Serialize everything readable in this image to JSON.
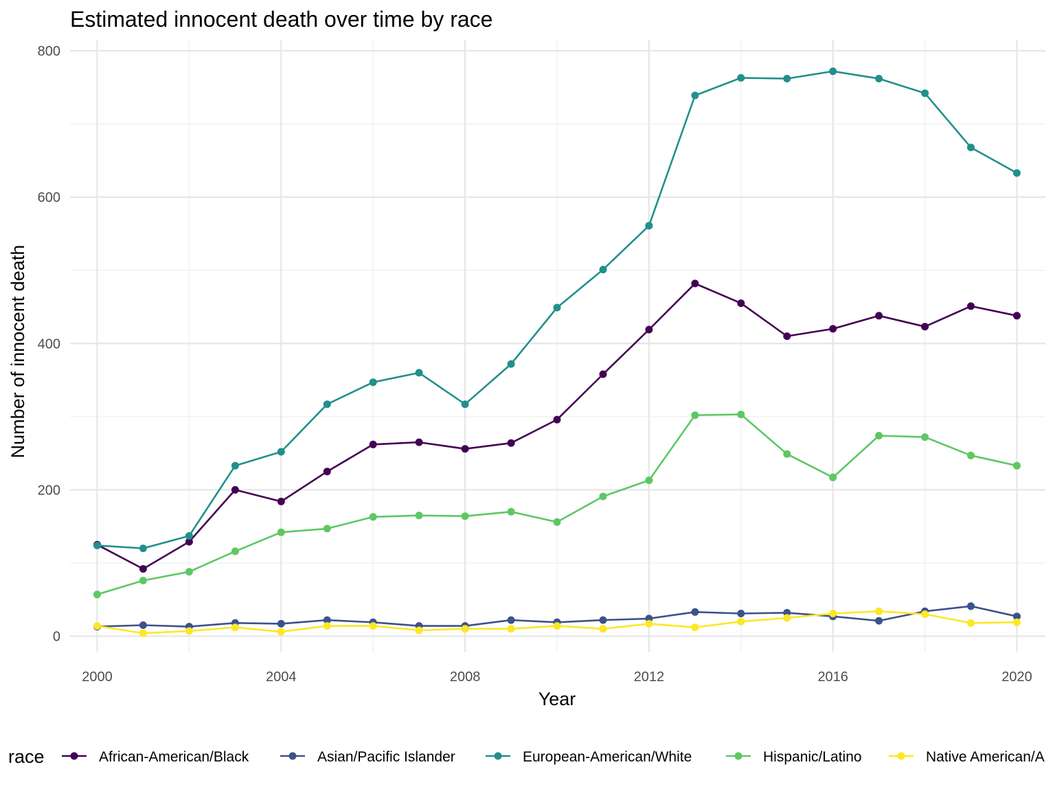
{
  "chart_data": {
    "type": "line",
    "title": "Estimated innocent death over time by race",
    "xlabel": "Year",
    "ylabel": "Number of innocent death",
    "xlim": [
      2000,
      2020
    ],
    "ylim": [
      0,
      800
    ],
    "x_ticks": [
      2000,
      2004,
      2008,
      2012,
      2016,
      2020
    ],
    "y_ticks": [
      0,
      200,
      400,
      600,
      800
    ],
    "grid": true,
    "legend": {
      "title": "race",
      "position": "bottom"
    },
    "x": [
      2000,
      2001,
      2002,
      2003,
      2004,
      2005,
      2006,
      2007,
      2008,
      2009,
      2010,
      2011,
      2012,
      2013,
      2014,
      2015,
      2016,
      2017,
      2018,
      2019,
      2020
    ],
    "series": [
      {
        "name": "African-American/Black",
        "color": "#440154",
        "values": [
          125,
          92,
          129,
          200,
          184,
          225,
          262,
          265,
          256,
          264,
          296,
          358,
          419,
          482,
          455,
          410,
          420,
          438,
          423,
          451,
          438
        ]
      },
      {
        "name": "Asian/Pacific Islander",
        "color": "#3B528B",
        "values": [
          13,
          15,
          13,
          18,
          17,
          22,
          19,
          14,
          14,
          22,
          19,
          22,
          24,
          33,
          31,
          32,
          27,
          21,
          34,
          41,
          27
        ]
      },
      {
        "name": "European-American/White",
        "color": "#21908C",
        "values": [
          124,
          120,
          137,
          233,
          252,
          317,
          347,
          360,
          317,
          372,
          449,
          501,
          561,
          739,
          763,
          762,
          772,
          762,
          742,
          668,
          633
        ]
      },
      {
        "name": "Hispanic/Latino",
        "color": "#5DC863",
        "values": [
          57,
          76,
          88,
          116,
          142,
          147,
          163,
          165,
          164,
          170,
          156,
          191,
          213,
          302,
          303,
          249,
          217,
          274,
          272,
          247,
          233
        ]
      },
      {
        "name": "Native American/A",
        "color": "#FDE725",
        "values": [
          14,
          4,
          7,
          12,
          6,
          14,
          14,
          8,
          10,
          10,
          14,
          10,
          17,
          12,
          20,
          25,
          31,
          34,
          30,
          18,
          19
        ]
      }
    ]
  }
}
